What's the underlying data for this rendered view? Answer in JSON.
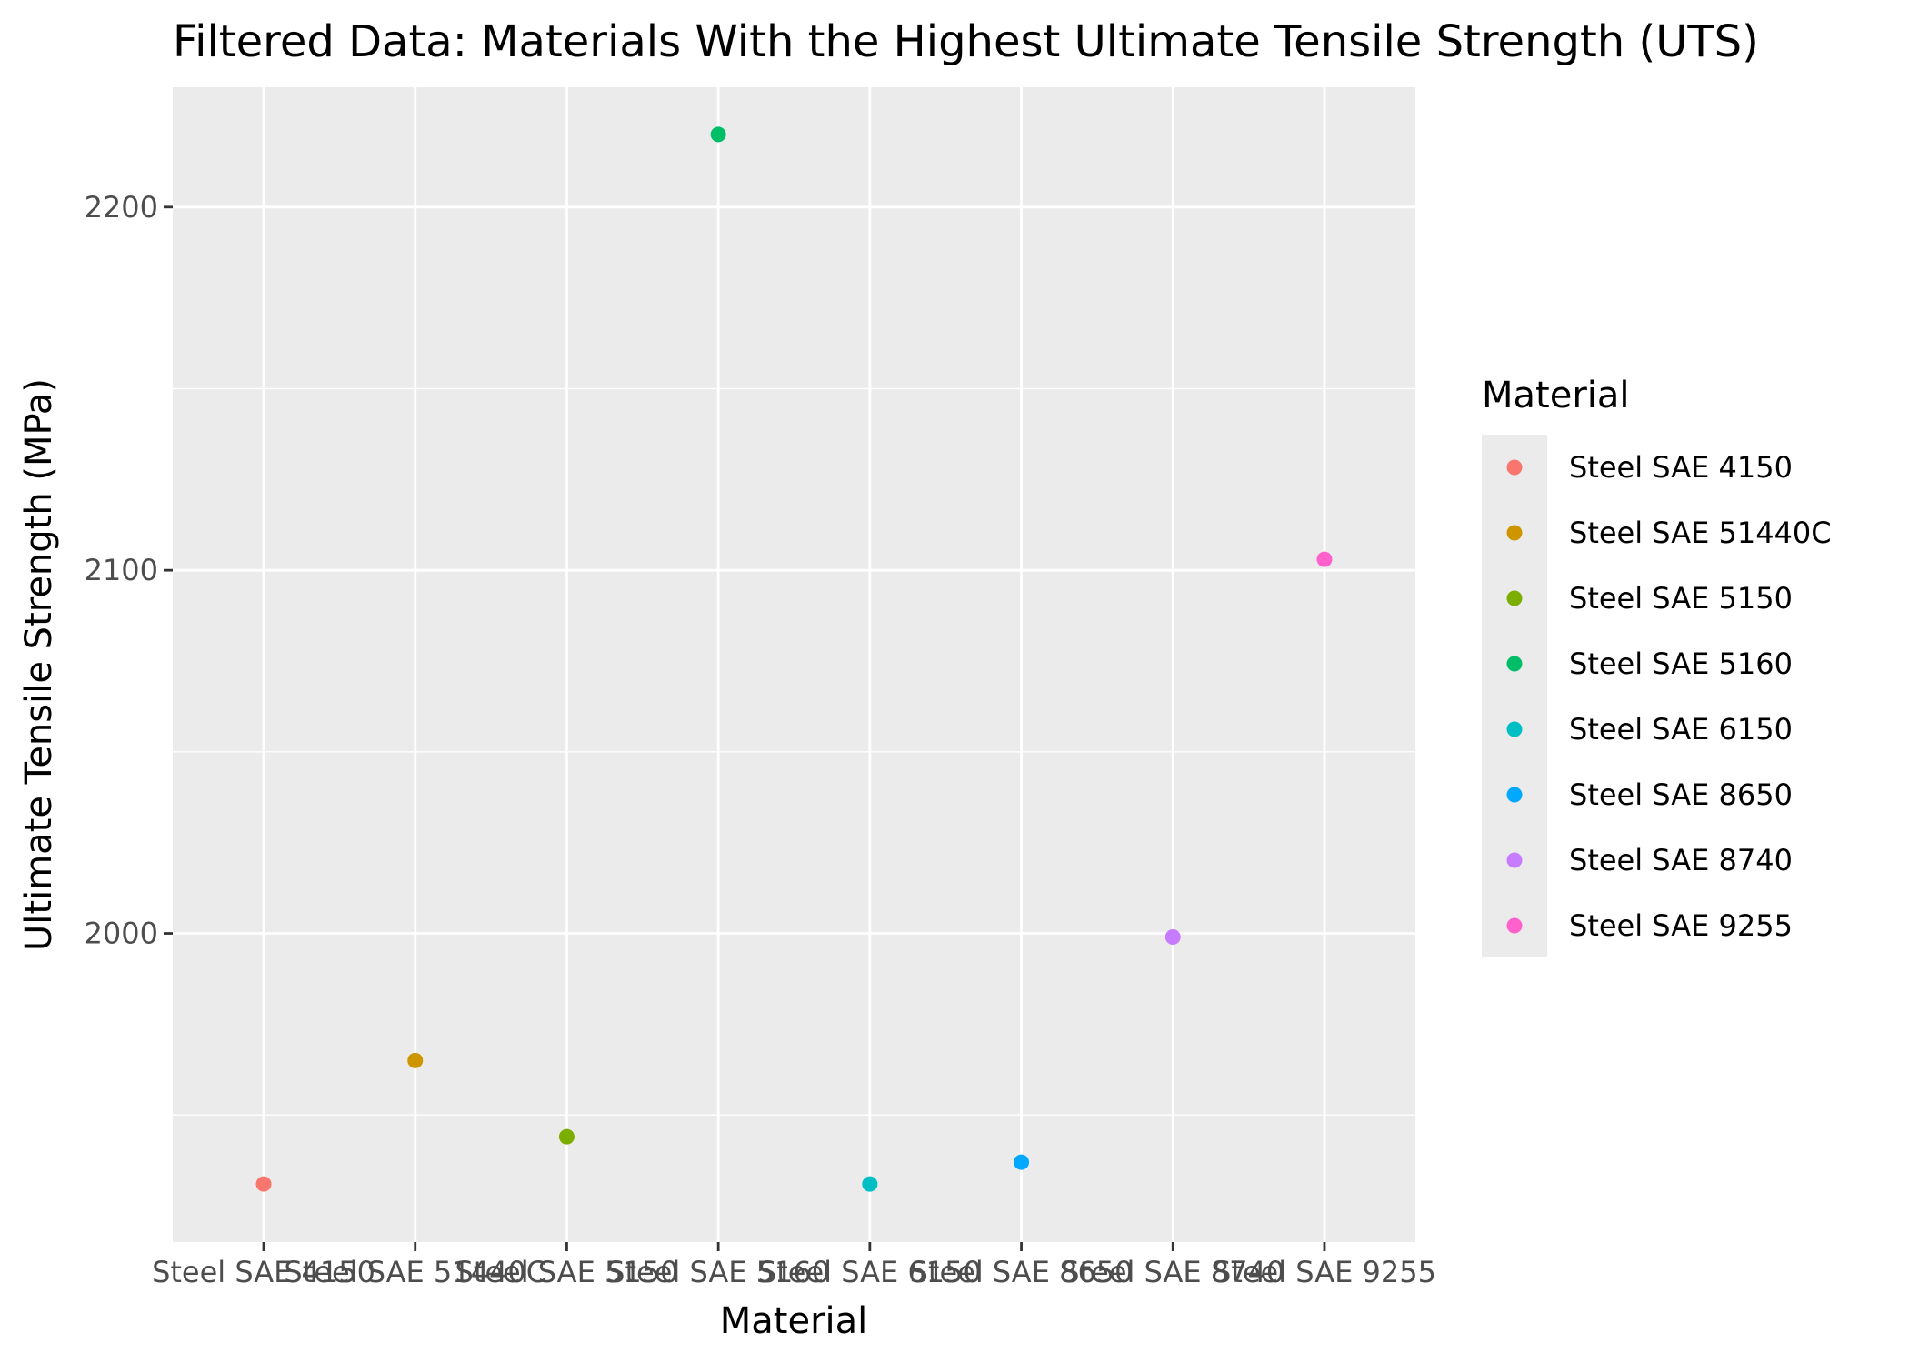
{
  "chart_data": {
    "type": "scatter",
    "title": "Filtered Data: Materials With the Highest Ultimate Tensile Strength (UTS)",
    "xlabel": "Material",
    "ylabel": "Ultimate Tensile Strength (MPa)",
    "ylim": [
      1915,
      2233
    ],
    "yticks": [
      2000,
      2100,
      2200
    ],
    "grid": true,
    "legend_position": "right",
    "legend_title": "Material",
    "categories": [
      "Steel SAE 4150",
      "Steel SAE 51440C",
      "Steel SAE 5150",
      "Steel SAE 5160",
      "Steel SAE 6150",
      "Steel SAE 8650",
      "Steel SAE 8740",
      "Steel SAE 9255"
    ],
    "values": [
      1931,
      1965,
      1944,
      2220,
      1931,
      1937,
      1999,
      2103
    ],
    "colors": [
      "#F8766D",
      "#CD9600",
      "#7CAE00",
      "#00BE67",
      "#00BFC4",
      "#00A9FF",
      "#C77CFF",
      "#FF61CC"
    ]
  }
}
